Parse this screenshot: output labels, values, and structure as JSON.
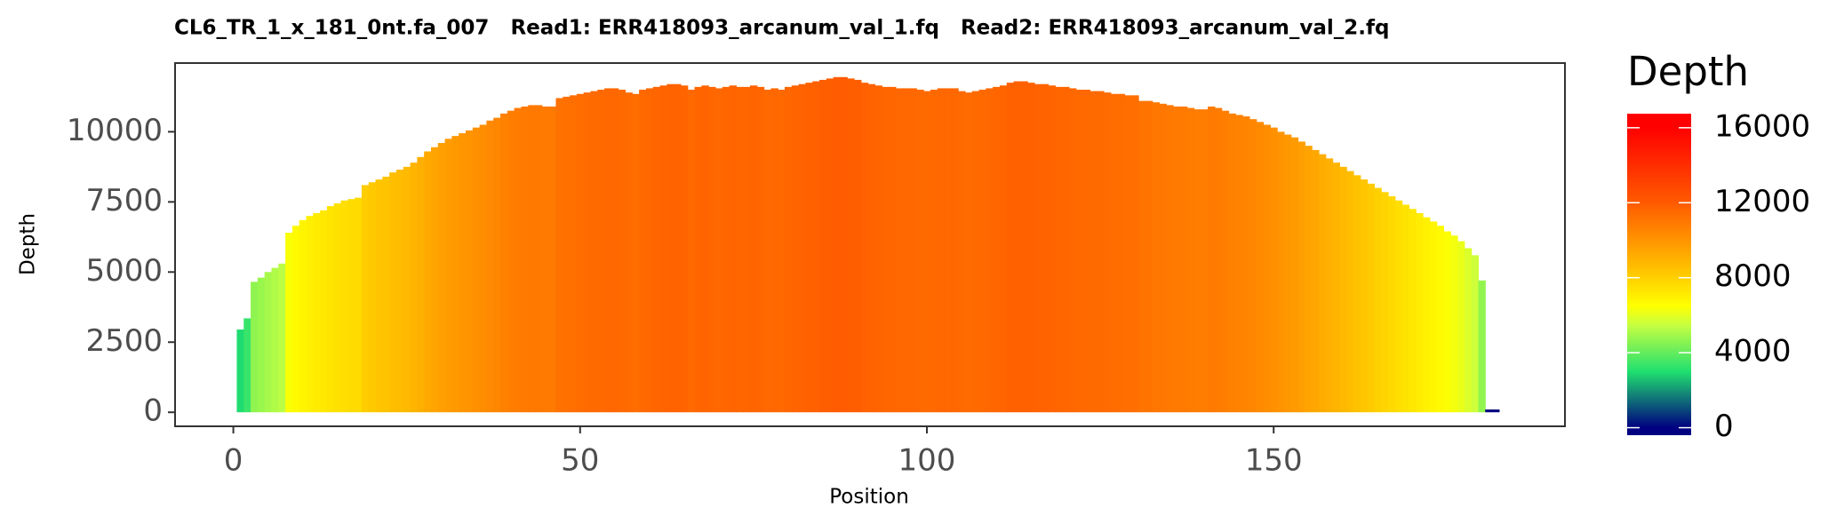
{
  "chart_data": {
    "type": "bar",
    "title": "CL6_TR_1_x_181_0nt.fa_007   Read1: ERR418093_arcanum_val_1.fq   Read2: ERR418093_arcanum_val_2.fq",
    "x_label": "Position",
    "y_label": "Depth",
    "legend_title": "Depth",
    "x": [
      1,
      2,
      3,
      4,
      5,
      6,
      7,
      8,
      9,
      10,
      11,
      12,
      13,
      14,
      15,
      16,
      17,
      18,
      19,
      20,
      21,
      22,
      23,
      24,
      25,
      26,
      27,
      28,
      29,
      30,
      31,
      32,
      33,
      34,
      35,
      36,
      37,
      38,
      39,
      40,
      41,
      42,
      43,
      44,
      45,
      46,
      47,
      48,
      49,
      50,
      51,
      52,
      53,
      54,
      55,
      56,
      57,
      58,
      59,
      60,
      61,
      62,
      63,
      64,
      65,
      66,
      67,
      68,
      69,
      70,
      71,
      72,
      73,
      74,
      75,
      76,
      77,
      78,
      79,
      80,
      81,
      82,
      83,
      84,
      85,
      86,
      87,
      88,
      89,
      90,
      91,
      92,
      93,
      94,
      95,
      96,
      97,
      98,
      99,
      100,
      101,
      102,
      103,
      104,
      105,
      106,
      107,
      108,
      109,
      110,
      111,
      112,
      113,
      114,
      115,
      116,
      117,
      118,
      119,
      120,
      121,
      122,
      123,
      124,
      125,
      126,
      127,
      128,
      129,
      130,
      131,
      132,
      133,
      134,
      135,
      136,
      137,
      138,
      139,
      140,
      141,
      142,
      143,
      144,
      145,
      146,
      147,
      148,
      149,
      150,
      151,
      152,
      153,
      154,
      155,
      156,
      157,
      158,
      159,
      160,
      161,
      162,
      163,
      164,
      165,
      166,
      167,
      168,
      169,
      170,
      171,
      172,
      173,
      174,
      175,
      176,
      177,
      178,
      179,
      180,
      181,
      182
    ],
    "values": [
      2950,
      3350,
      4650,
      4800,
      5000,
      5150,
      5300,
      6400,
      6650,
      6850,
      7000,
      7100,
      7200,
      7350,
      7450,
      7550,
      7600,
      7650,
      8100,
      8200,
      8300,
      8400,
      8550,
      8650,
      8750,
      8900,
      9100,
      9300,
      9450,
      9600,
      9750,
      9850,
      9950,
      10050,
      10150,
      10250,
      10400,
      10500,
      10650,
      10750,
      10850,
      10900,
      10950,
      10950,
      10900,
      10900,
      11200,
      11250,
      11300,
      11350,
      11400,
      11450,
      11500,
      11550,
      11550,
      11500,
      11400,
      11350,
      11500,
      11550,
      11600,
      11650,
      11700,
      11700,
      11650,
      11500,
      11600,
      11650,
      11600,
      11550,
      11600,
      11650,
      11600,
      11600,
      11650,
      11600,
      11500,
      11550,
      11500,
      11600,
      11650,
      11700,
      11750,
      11800,
      11850,
      11900,
      11950,
      11950,
      11900,
      11850,
      11750,
      11700,
      11650,
      11600,
      11600,
      11550,
      11550,
      11550,
      11500,
      11450,
      11500,
      11550,
      11550,
      11550,
      11450,
      11400,
      11450,
      11500,
      11550,
      11600,
      11650,
      11750,
      11800,
      11800,
      11750,
      11700,
      11700,
      11650,
      11600,
      11600,
      11550,
      11500,
      11500,
      11450,
      11450,
      11400,
      11350,
      11350,
      11300,
      11300,
      11100,
      11100,
      11050,
      11000,
      10950,
      10900,
      10900,
      10850,
      10800,
      10800,
      10900,
      10850,
      10750,
      10650,
      10600,
      10550,
      10450,
      10350,
      10250,
      10150,
      10000,
      9900,
      9800,
      9650,
      9500,
      9350,
      9200,
      9050,
      8900,
      8750,
      8600,
      8450,
      8300,
      8150,
      8000,
      7850,
      7700,
      7550,
      7400,
      7250,
      7100,
      6950,
      6800,
      6650,
      6450,
      6300,
      6100,
      5850,
      5600,
      4700,
      100,
      100
    ],
    "xlim": [
      -8.4,
      192
    ],
    "ylim": [
      -500,
      12450
    ],
    "xticks": [
      0,
      50,
      100,
      150
    ],
    "yticks": [
      0,
      2500,
      5000,
      7500,
      10000
    ],
    "colorscale": [
      {
        "value": 0,
        "color": "#000080"
      },
      {
        "value": 3000,
        "color": "#20e070"
      },
      {
        "value": 5500,
        "color": "#c8ff40"
      },
      {
        "value": 6500,
        "color": "#ffff00"
      },
      {
        "value": 8500,
        "color": "#ffc000"
      },
      {
        "value": 12000,
        "color": "#ff5a00"
      },
      {
        "value": 16000,
        "color": "#ff0000"
      }
    ],
    "colorbar_lim": [
      -400,
      16750
    ],
    "colorbar_ticks": [
      0,
      4000,
      8000,
      12000,
      16000
    ]
  }
}
